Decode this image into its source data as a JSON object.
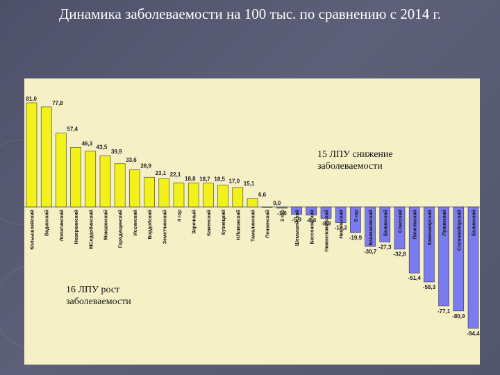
{
  "slide": {
    "title": "Динамика заболеваемости на 100 тыс. по сравнению с 2014 г."
  },
  "chart_data": {
    "type": "bar",
    "title": "Динамика заболеваемости на 100 тыс. по сравнению с 2014 г.",
    "xlabel": "",
    "ylabel": "",
    "ylim": [
      -94.4,
      81.0
    ],
    "grid": false,
    "legend": "none",
    "categories": [
      "Кольышлейский",
      "Вадинский",
      "Лопатинский",
      "Неверкинский",
      "МСердобинский",
      "Мокшанский",
      "Городищенский",
      "Иссинский",
      "Бордобский",
      "Земетчинский",
      "4 гор",
      "Заречный",
      "Каменский",
      "Кузнецкий",
      "НЛомовский",
      "Тамалинский",
      "Пензенский",
      "3 гор",
      "Шемышейский",
      "Бессоновский",
      "Нижнеломовский",
      "Никольский",
      "6 гор",
      "Башмаковский",
      "Белинский",
      "Спасский",
      "Пачелмский",
      "Камешкирский",
      "Лунинский",
      "Сосновоборский",
      "Белинский"
    ],
    "values": [
      81.0,
      77.8,
      57.4,
      46.3,
      43.5,
      39.9,
      33.6,
      28.9,
      23.1,
      22.1,
      18.8,
      18.7,
      18.5,
      17.0,
      15.1,
      6.6,
      0.0,
      -1.0,
      -5.9,
      -6.4,
      -8.9,
      -12.2,
      -19.9,
      -30.7,
      -27.3,
      -32.8,
      -51.4,
      -58.3,
      -77.1,
      -80.9,
      -94.4
    ],
    "value_labels": [
      "81,0",
      "77,8",
      "57,4",
      "46,3",
      "43,5",
      "39,9",
      "33,6",
      "28,9",
      "23,1",
      "22,1",
      "18,8",
      "18,7",
      "18,5",
      "17,0",
      "15,1",
      "6,6",
      "0,0",
      "-1,0",
      "-5,9",
      "-6,4",
      "-8,9",
      "-12,2",
      "-19,9",
      "-30,7",
      "-27,3",
      "-32,8",
      "-51,4",
      "-58,3",
      "-77,1",
      "-80,9",
      "-94,4"
    ],
    "colors": {
      "positive": "#f2f21a",
      "negative": "#7b7bf0",
      "stroke": "#333333"
    },
    "annotations": [
      "15 ЛПУ снижение заболеваемости",
      "16 ЛПУ рост заболеваемости"
    ]
  }
}
